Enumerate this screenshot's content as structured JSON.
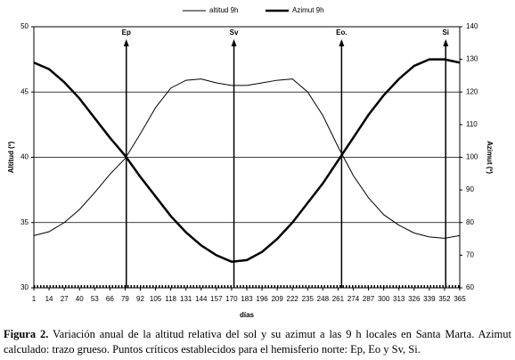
{
  "chart_data": {
    "type": "line",
    "x": [
      1,
      14,
      27,
      40,
      53,
      66,
      79,
      92,
      105,
      118,
      131,
      144,
      157,
      170,
      183,
      196,
      209,
      222,
      235,
      248,
      261,
      274,
      287,
      300,
      313,
      326,
      339,
      352,
      365
    ],
    "series": [
      {
        "name": "altitud 9h",
        "color": "#000000",
        "width": 1,
        "values": [
          34.0,
          34.3,
          35.0,
          36.0,
          37.3,
          38.7,
          39.9,
          41.8,
          43.8,
          45.3,
          45.9,
          46.0,
          45.7,
          45.5,
          45.5,
          45.7,
          45.9,
          46.0,
          45.0,
          43.2,
          40.8,
          38.6,
          36.9,
          35.6,
          34.8,
          34.2,
          33.9,
          33.8,
          34.0
        ]
      },
      {
        "name": "Azimut 9h",
        "color": "#000000",
        "width": 2.5,
        "axis": "y2",
        "values": [
          129,
          127,
          123,
          118,
          112,
          106,
          100.5,
          94,
          88,
          82,
          77,
          73,
          70,
          68,
          68.5,
          71,
          75,
          80,
          86,
          92,
          99,
          106,
          113,
          119,
          124,
          128,
          130,
          130,
          129
        ]
      }
    ],
    "xlabel": "días",
    "ylabel": "Altitud (º)",
    "y2label": "Azimut (º)",
    "xlim": [
      1,
      365
    ],
    "xticks": [
      1,
      14,
      27,
      40,
      53,
      66,
      79,
      92,
      105,
      118,
      131,
      144,
      157,
      170,
      183,
      196,
      209,
      222,
      235,
      248,
      261,
      274,
      287,
      300,
      313,
      326,
      339,
      352,
      365
    ],
    "ylim": [
      30,
      50
    ],
    "yticks": [
      30,
      35,
      40,
      45,
      50
    ],
    "y2lim": [
      60,
      140
    ],
    "y2ticks": [
      60,
      70,
      80,
      90,
      100,
      110,
      120,
      130,
      140
    ],
    "grid": true,
    "annotations": [
      {
        "text": "Ep",
        "x": 80
      },
      {
        "text": "Sv",
        "x": 172
      },
      {
        "text": "Eo.",
        "x": 264
      },
      {
        "text": "Si",
        "x": 353
      }
    ]
  },
  "caption": {
    "label": "Figura 2.",
    "text": "Variación anual de la altitud relativa del sol y su azimut a las 9 h locales en Santa Marta. Azimut calculado: trazo grueso. Puntos críticos establecidos para el hemisferio norte: Ep, Eo y Sv, Si."
  }
}
